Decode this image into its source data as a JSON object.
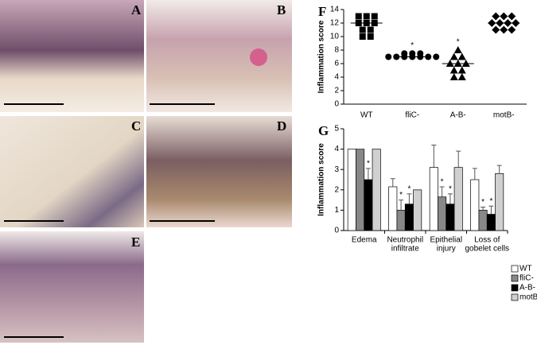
{
  "panels": [
    {
      "label": "A"
    },
    {
      "label": "B"
    },
    {
      "label": "C"
    },
    {
      "label": "D"
    },
    {
      "label": "E"
    }
  ],
  "chart_data": [
    {
      "type": "dot",
      "panel_label": "F",
      "ylabel": "Inflammation score",
      "categories": [
        "WT",
        "fliC-",
        "A-B-",
        "motB-"
      ],
      "groups": [
        {
          "marker": "square",
          "values": [
            13,
            13,
            13,
            12,
            12,
            12,
            11,
            11,
            10,
            10
          ],
          "median": 12,
          "annotation": null
        },
        {
          "marker": "circle",
          "values": [
            7.5,
            7.5,
            7.5,
            7,
            7,
            7,
            7,
            7,
            7,
            7
          ],
          "median": 7,
          "annotation": "*"
        },
        {
          "marker": "triangle",
          "values": [
            8,
            7,
            7,
            6,
            6,
            6,
            5,
            5,
            4,
            4
          ],
          "median": 6,
          "annotation": "*"
        },
        {
          "marker": "diamond",
          "values": [
            13,
            13,
            13,
            12,
            12,
            12,
            12,
            11,
            11,
            11
          ],
          "median": 12,
          "annotation": null
        }
      ],
      "ylim": [
        0,
        14
      ],
      "yticks": [
        0,
        2,
        4,
        6,
        8,
        10,
        12,
        14
      ],
      "color": "#000000"
    },
    {
      "type": "bar",
      "panel_label": "G",
      "ylabel": "Inflammation score",
      "categories": [
        [
          "Edema"
        ],
        [
          "Neutrophil",
          "infiltrate"
        ],
        [
          "Epithelial",
          "injury"
        ],
        [
          "Loss of",
          "gobelet cells"
        ]
      ],
      "series": [
        {
          "name": "WT",
          "color": "#ffffff",
          "values": [
            4,
            2.15,
            3.1,
            2.5
          ],
          "errors": [
            0,
            0.4,
            1.1,
            0.55
          ],
          "stars": [
            null,
            null,
            null,
            null
          ]
        },
        {
          "name": "fliC-",
          "color": "#888888",
          "values": [
            4,
            1.0,
            1.65,
            1.0
          ],
          "errors": [
            0,
            0.5,
            0.5,
            0.15
          ],
          "stars": [
            null,
            "*",
            "*",
            "*"
          ]
        },
        {
          "name": "A-B-",
          "color": "#000000",
          "values": [
            2.5,
            1.3,
            1.3,
            0.8
          ],
          "errors": [
            0.55,
            0.5,
            0.5,
            0.4
          ],
          "stars": [
            "*",
            "*",
            "*",
            "*"
          ]
        },
        {
          "name": "motB-",
          "color": "#d0d0d0",
          "values": [
            4,
            2.0,
            3.1,
            2.8
          ],
          "errors": [
            0,
            0,
            0.8,
            0.4
          ],
          "stars": [
            null,
            null,
            null,
            null
          ]
        }
      ],
      "ylim": [
        0,
        5
      ],
      "yticks": [
        0,
        1,
        2,
        3,
        4,
        5
      ],
      "legend": "right"
    }
  ]
}
